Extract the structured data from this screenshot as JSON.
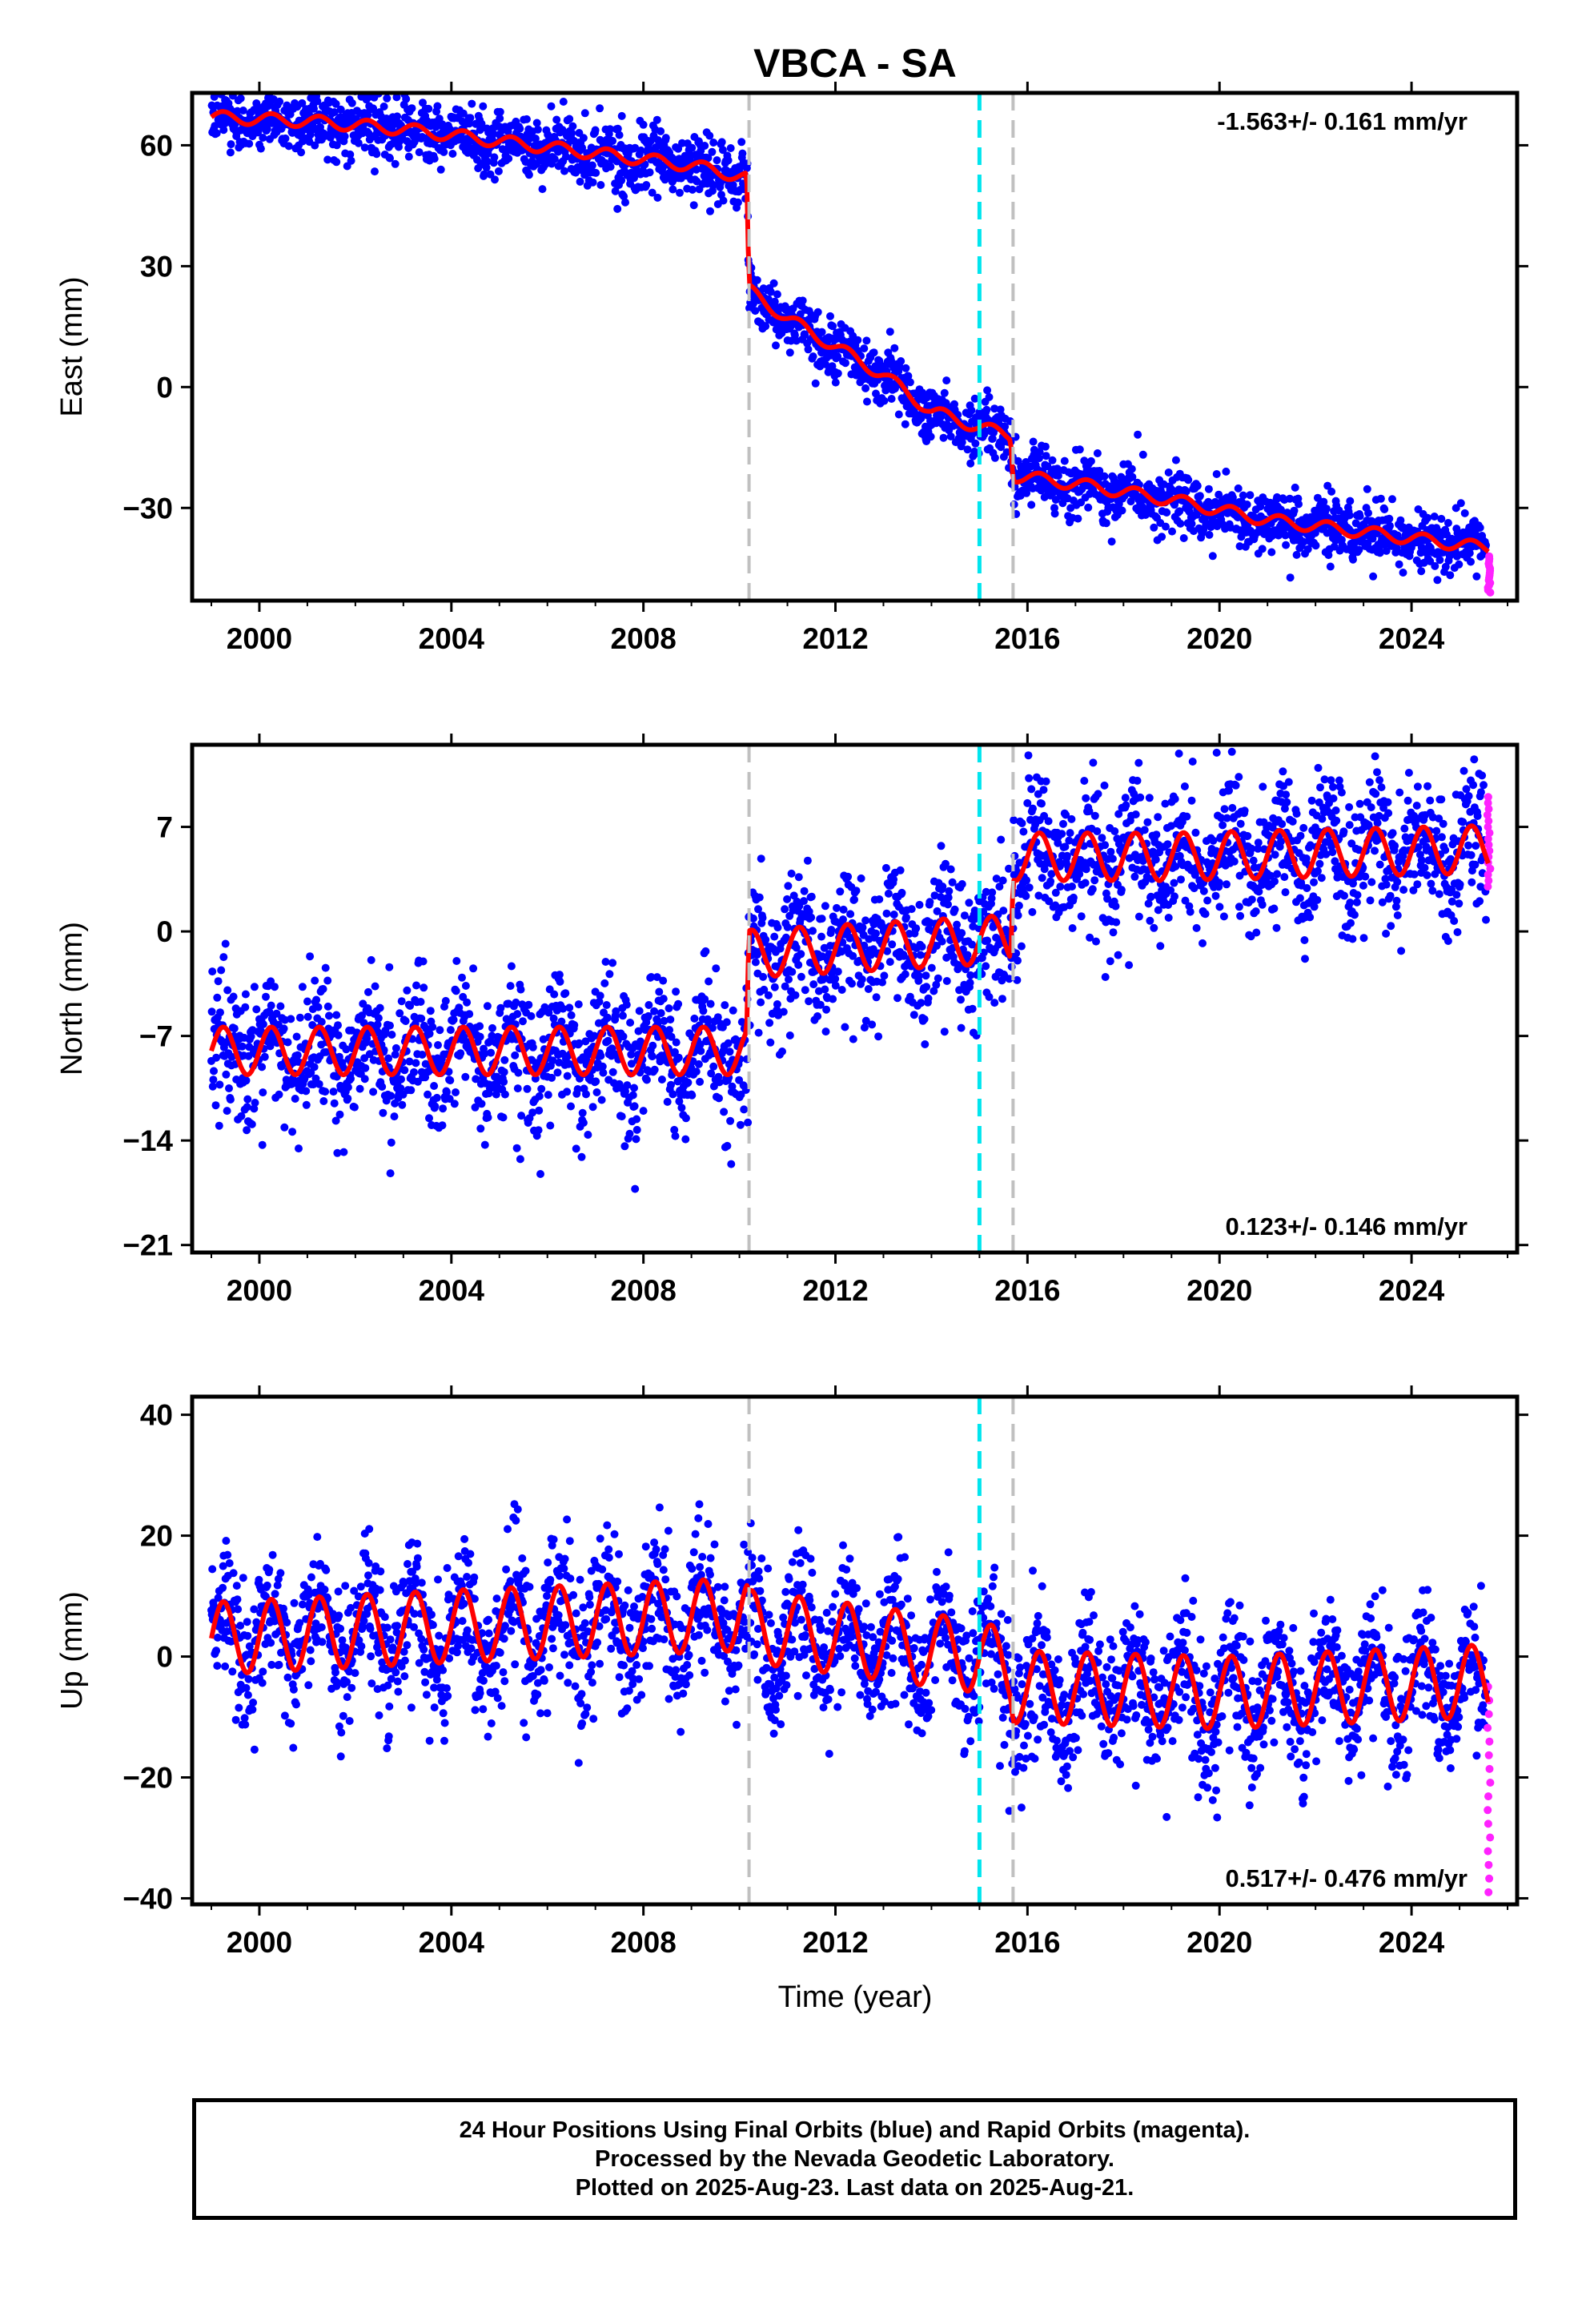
{
  "title": "VBCA - SA",
  "xlabel": "Time (year)",
  "footer": [
    "24 Hour Positions Using Final Orbits (blue) and Rapid Orbits (magenta).",
    "Processed by the Nevada Geodetic Laboratory.",
    "Plotted on 2025-Aug-23. Last data on 2025-Aug-21."
  ],
  "colors": {
    "final_orbits": "#0000ff",
    "rapid_orbits": "#ff22ff",
    "model": "#ff0000",
    "equipment_change": "#c0c0c0",
    "earthquake": "#00e5ee"
  },
  "chart_data": [
    {
      "type": "scatter",
      "ylabel": "East (mm)",
      "xlim": [
        1998.6,
        2026.2
      ],
      "ylim": [
        -53,
        73
      ],
      "x_ticks": [
        2000,
        2004,
        2008,
        2012,
        2016,
        2020,
        2024
      ],
      "y_ticks": [
        60,
        30,
        0,
        -30
      ],
      "y_tick_labels": [
        "60",
        "30",
        "0",
        "−30"
      ],
      "annotation": "-1.563+/- 0.161 mm/yr",
      "annotation_position": "top-right",
      "grey_dashed_lines": [
        2010.2,
        2015.7
      ],
      "cyan_dashed_lines": [
        2015.0
      ],
      "model_curve": [
        [
          1999.0,
          67
        ],
        [
          2001.0,
          66
        ],
        [
          2003.0,
          64
        ],
        [
          2005.0,
          61
        ],
        [
          2007.0,
          58
        ],
        [
          2009.0,
          55
        ],
        [
          2010.15,
          52
        ],
        [
          2010.2,
          24
        ],
        [
          2011.0,
          17
        ],
        [
          2012.0,
          10
        ],
        [
          2013.0,
          3
        ],
        [
          2014.0,
          -6
        ],
        [
          2015.0,
          -10
        ],
        [
          2015.65,
          -12
        ],
        [
          2015.7,
          -22
        ],
        [
          2017.0,
          -24
        ],
        [
          2019.0,
          -28
        ],
        [
          2021.0,
          -33
        ],
        [
          2023.0,
          -36
        ],
        [
          2025.6,
          -40
        ]
      ],
      "seasonal_amplitude": 1.5,
      "scatter_noise": 3.5,
      "rapid_orbits_range": [
        -51,
        -42
      ]
    },
    {
      "type": "scatter",
      "ylabel": "North (mm)",
      "xlim": [
        1998.6,
        2026.2
      ],
      "ylim": [
        -21.5,
        12.5
      ],
      "x_ticks": [
        2000,
        2004,
        2008,
        2012,
        2016,
        2020,
        2024
      ],
      "y_ticks": [
        7,
        0,
        -7,
        -14,
        -21
      ],
      "y_tick_labels": [
        "7",
        "0",
        "−7",
        "−14",
        "−21"
      ],
      "annotation": "0.123+/- 0.146 mm/yr",
      "annotation_position": "bottom-right",
      "grey_dashed_lines": [
        2010.2,
        2015.7
      ],
      "cyan_dashed_lines": [
        2015.0
      ],
      "model_curve": [
        [
          1999.0,
          -8
        ],
        [
          2010.15,
          -8
        ],
        [
          2010.2,
          -1.5
        ],
        [
          2015.65,
          -0.5
        ],
        [
          2015.7,
          5
        ],
        [
          2019.0,
          5
        ],
        [
          2025.6,
          5.5
        ]
      ],
      "seasonal_amplitude": 1.6,
      "scatter_noise": 2.2,
      "rapid_orbits_range": [
        3,
        9
      ]
    },
    {
      "type": "scatter",
      "ylabel": "Up (mm)",
      "xlim": [
        1998.6,
        2026.2
      ],
      "ylim": [
        -41,
        43
      ],
      "x_ticks": [
        2000,
        2004,
        2008,
        2012,
        2016,
        2020,
        2024
      ],
      "y_ticks": [
        40,
        20,
        0,
        -20,
        -40
      ],
      "y_tick_labels": [
        "40",
        "20",
        "0",
        "−20",
        "−40"
      ],
      "annotation": "0.517+/- 0.476 mm/yr",
      "annotation_position": "bottom-right",
      "grey_dashed_lines": [
        2010.2,
        2015.7
      ],
      "cyan_dashed_lines": [
        2015.0
      ],
      "model_curve": [
        [
          1999.0,
          3
        ],
        [
          2004.0,
          5
        ],
        [
          2010.15,
          7
        ],
        [
          2010.2,
          5
        ],
        [
          2015.0,
          0
        ],
        [
          2015.65,
          -2
        ],
        [
          2015.7,
          -5
        ],
        [
          2020.0,
          -6
        ],
        [
          2025.6,
          -4
        ]
      ],
      "seasonal_amplitude": 6,
      "scatter_noise": 5.5,
      "rapid_orbits_range": [
        -39,
        -5
      ]
    }
  ]
}
